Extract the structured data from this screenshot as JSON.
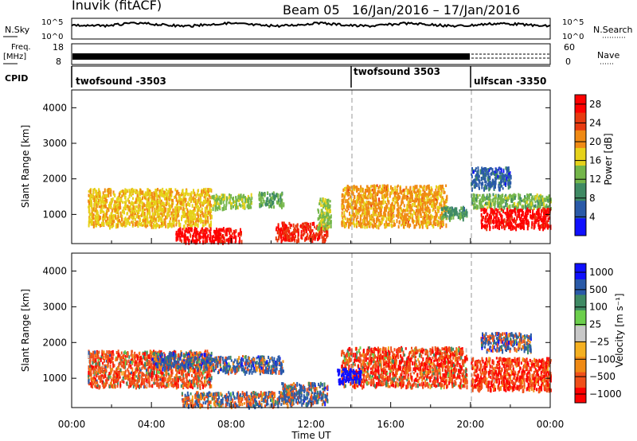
{
  "header": {
    "station": "Inuvik (fitACF)",
    "beam": "Beam 05",
    "date_range": "16/Jan/2016 – 17/Jan/2016"
  },
  "summary_panels": {
    "nsky_label": "N.Sky",
    "nsky_ticks": [
      "10^5",
      "10^0"
    ],
    "nsearch_label": "N.Search",
    "nsearch_ticks": [
      "10^5",
      "10^0"
    ],
    "freq_label": "Freq.",
    "freq_unit": "[MHz]",
    "freq_ticks": [
      "18",
      "8"
    ],
    "nave_label": "Nave",
    "nave_ticks": [
      "60",
      "0"
    ],
    "cpid_label": "CPID",
    "cpid_segments": [
      {
        "name": "twofsound -3503",
        "start_hour": 0
      },
      {
        "name": "twofsound 3503",
        "start_hour": 14
      },
      {
        "name": "ulfscan -3350",
        "start_hour": 20
      }
    ]
  },
  "x_axis": {
    "label": "Time UT",
    "ticks": [
      "00:00",
      "04:00",
      "08:00",
      "12:00",
      "16:00",
      "20:00",
      "00:00"
    ]
  },
  "chart_data": [
    {
      "type": "heatmap",
      "panel": "power",
      "ylabel": "Slant Range [km]",
      "yticks": [
        "1000",
        "2000",
        "3000",
        "4000"
      ],
      "ylim": [
        180,
        4500
      ],
      "xlim_hours": [
        0,
        24
      ],
      "colorbar_label": "Power [dB]",
      "colorbar_ticks": [
        "4",
        "8",
        "12",
        "16",
        "20",
        "24",
        "28"
      ],
      "colorbar_range": [
        0,
        30
      ],
      "colorscale": [
        "#1010ff",
        "#2a5aa8",
        "#3f8a64",
        "#74b64a",
        "#e6d21a",
        "#f08a14",
        "#e83a10",
        "#ff0000"
      ],
      "echo_regions": [
        {
          "t": [
            0.8,
            7.0
          ],
          "r": [
            700,
            1750
          ],
          "value": 18
        },
        {
          "t": [
            7.0,
            9.0
          ],
          "r": [
            1200,
            1600
          ],
          "value": 14
        },
        {
          "t": [
            9.3,
            10.6
          ],
          "r": [
            1250,
            1650
          ],
          "value": 12
        },
        {
          "t": [
            5.2,
            8.5
          ],
          "r": [
            250,
            650
          ],
          "value": 28
        },
        {
          "t": [
            10.2,
            12.8
          ],
          "r": [
            300,
            800
          ],
          "value": 26
        },
        {
          "t": [
            12.3,
            13.0
          ],
          "r": [
            600,
            1500
          ],
          "value": 14
        },
        {
          "t": [
            13.5,
            18.8
          ],
          "r": [
            700,
            1850
          ],
          "value": 20
        },
        {
          "t": [
            18.5,
            19.8
          ],
          "r": [
            900,
            1250
          ],
          "value": 10
        },
        {
          "t": [
            20.0,
            24.0
          ],
          "r": [
            1200,
            1600
          ],
          "value": 13
        },
        {
          "t": [
            20.5,
            24.0
          ],
          "r": [
            650,
            1200
          ],
          "value": 28
        },
        {
          "t": [
            20.0,
            22.0
          ],
          "r": [
            1750,
            2350
          ],
          "value": 6
        }
      ]
    },
    {
      "type": "heatmap",
      "panel": "velocity",
      "ylabel": "Slant Range [km]",
      "yticks": [
        "1000",
        "2000",
        "3000",
        "4000"
      ],
      "ylim": [
        180,
        4500
      ],
      "xlim_hours": [
        0,
        24
      ],
      "colorbar_label": "Velocity [m s⁻¹]",
      "colorbar_ticks": [
        "1000",
        "500",
        "100",
        "25",
        "−25",
        "−100",
        "−500",
        "−1000"
      ],
      "colorbar_range": [
        -1000,
        1000
      ],
      "colorscale": [
        "#ff0000",
        "#f0501a",
        "#f08a14",
        "#f5b020",
        "#c8c8c8",
        "#6ccf4c",
        "#3f8a64",
        "#2a5aa8",
        "#1010ff"
      ],
      "echo_regions": [
        {
          "t": [
            0.8,
            7.0
          ],
          "r": [
            800,
            1800
          ],
          "value": -120
        },
        {
          "t": [
            4.0,
            7.0
          ],
          "r": [
            1300,
            1750
          ],
          "value": 80
        },
        {
          "t": [
            5.5,
            11.0
          ],
          "r": [
            250,
            650
          ],
          "value": 0
        },
        {
          "t": [
            7.0,
            10.6
          ],
          "r": [
            1200,
            1650
          ],
          "value": 60
        },
        {
          "t": [
            10.5,
            12.8
          ],
          "r": [
            300,
            900
          ],
          "value": 40
        },
        {
          "t": [
            13.5,
            19.8
          ],
          "r": [
            800,
            1900
          ],
          "value": -150
        },
        {
          "t": [
            13.3,
            14.5
          ],
          "r": [
            900,
            1300
          ],
          "value": 400
        },
        {
          "t": [
            20.0,
            24.0
          ],
          "r": [
            700,
            1600
          ],
          "value": -180
        },
        {
          "t": [
            20.5,
            23.0
          ],
          "r": [
            1800,
            2300
          ],
          "value": 60
        }
      ]
    }
  ]
}
